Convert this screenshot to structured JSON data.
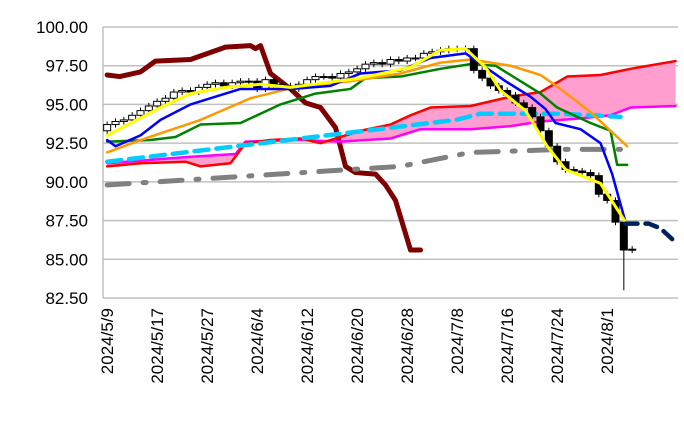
{
  "chart_data": {
    "type": "line",
    "title": "",
    "xlabel": "",
    "ylabel": "",
    "ylim": [
      82.5,
      100
    ],
    "yticks": [
      "100.00",
      "97.50",
      "95.00",
      "92.50",
      "90.00",
      "87.50",
      "85.00",
      "82.50"
    ],
    "ytick_values": [
      100,
      97.5,
      95,
      92.5,
      90,
      87.5,
      85,
      82.5
    ],
    "xlim_index": [
      -0.5,
      68.5
    ],
    "xtick_labels": [
      "2024/5/9",
      "2024/5/17",
      "2024/5/27",
      "2024/6/4",
      "2024/6/12",
      "2024/6/20",
      "2024/6/28",
      "2024/7/8",
      "2024/7/16",
      "2024/7/24",
      "2024/8/1"
    ],
    "xtick_index": [
      0,
      6,
      12,
      18,
      24,
      30,
      36,
      42,
      48,
      54,
      60
    ],
    "grid": "horizontal",
    "colors": {
      "up": "#ffffff",
      "down": "#000000",
      "cloud": "#ff99cc",
      "grid": "#c0c0c0"
    },
    "candles_close": [
      93.7,
      93.9,
      94.0,
      94.3,
      94.6,
      94.9,
      95.2,
      95.4,
      95.8,
      95.9,
      95.8,
      96.1,
      96.3,
      96.4,
      96.2,
      96.4,
      96.5,
      96.5,
      96.0,
      96.6,
      96.3,
      96.2,
      96.0,
      96.3,
      96.6,
      96.8,
      96.8,
      96.7,
      97.0,
      97.1,
      97.3,
      97.6,
      97.7,
      97.6,
      97.9,
      97.8,
      98.0,
      98.0,
      98.3,
      98.4,
      98.5,
      98.6,
      98.6,
      98.6,
      97.2,
      96.7,
      96.2,
      95.9,
      95.6,
      95.1,
      94.8,
      94.2,
      93.3,
      92.3,
      91.3,
      90.8,
      90.7,
      90.6,
      90.4,
      89.2,
      88.8,
      87.4,
      85.6,
      85.65
    ],
    "candles_first_open": 93.3,
    "candles_low_override": {
      "62": 83.0
    },
    "series": [
      {
        "name": "lagging-span",
        "color": "#7f0000",
        "width": 5,
        "dash": "",
        "points": [
          [
            0,
            96.9
          ],
          [
            1.5,
            96.8
          ],
          [
            4,
            97.1
          ],
          [
            5.8,
            97.8
          ],
          [
            10,
            97.9
          ],
          [
            14.2,
            98.7
          ],
          [
            17.2,
            98.8
          ],
          [
            17.8,
            98.6
          ],
          [
            18.4,
            98.8
          ],
          [
            19.6,
            97.0
          ],
          [
            22,
            96.0
          ],
          [
            23.8,
            95.1
          ],
          [
            25.6,
            94.8
          ],
          [
            27.4,
            93.5
          ],
          [
            28.6,
            91.0
          ],
          [
            29.8,
            90.6
          ],
          [
            32.2,
            90.5
          ],
          [
            33.4,
            89.8
          ],
          [
            34.6,
            88.8
          ],
          [
            36.4,
            85.6
          ],
          [
            37.6,
            85.6
          ]
        ]
      },
      {
        "name": "senkou-b",
        "color": "#ff00ff",
        "width": 2.5,
        "dash": "",
        "points": [
          [
            0,
            91.2
          ],
          [
            9.4,
            91.6
          ],
          [
            15.4,
            91.8
          ],
          [
            16.6,
            92.6
          ],
          [
            23.2,
            92.7
          ],
          [
            28,
            92.6
          ],
          [
            34,
            92.8
          ],
          [
            37.6,
            93.4
          ],
          [
            43.6,
            93.4
          ],
          [
            48.4,
            93.6
          ],
          [
            52,
            93.9
          ],
          [
            56.8,
            94.1
          ],
          [
            60.4,
            94.3
          ],
          [
            62.8,
            94.8
          ],
          [
            68.2,
            94.9
          ]
        ]
      },
      {
        "name": "senkou-a",
        "color": "#ff0000",
        "width": 2.5,
        "dash": "",
        "points": [
          [
            0,
            91.0
          ],
          [
            4,
            91.2
          ],
          [
            9.4,
            91.3
          ],
          [
            11.2,
            91.0
          ],
          [
            14.8,
            91.2
          ],
          [
            16.6,
            92.5
          ],
          [
            19.6,
            92.7
          ],
          [
            23.2,
            92.8
          ],
          [
            25.6,
            92.5
          ],
          [
            28,
            92.9
          ],
          [
            30.4,
            93.3
          ],
          [
            34,
            93.7
          ],
          [
            36.4,
            94.3
          ],
          [
            38.8,
            94.8
          ],
          [
            43.6,
            94.9
          ],
          [
            48.4,
            95.5
          ],
          [
            52,
            95.8
          ],
          [
            55.2,
            96.8
          ],
          [
            59.2,
            96.9
          ],
          [
            62.8,
            97.3
          ],
          [
            68.2,
            97.8
          ]
        ]
      },
      {
        "name": "moving-average-75",
        "color": "#808080",
        "width": 5,
        "dash": "22 14 3 14",
        "points": [
          [
            0,
            89.8
          ],
          [
            35.2,
            91.0
          ],
          [
            43.6,
            91.9
          ],
          [
            49.6,
            92.0
          ],
          [
            54.4,
            92.1
          ],
          [
            61.6,
            92.1
          ]
        ]
      },
      {
        "name": "moving-average-25",
        "color": "#00ccff",
        "width": 4.5,
        "dash": "14 8",
        "points": [
          [
            0,
            91.3
          ],
          [
            41.8,
            94.0
          ],
          [
            44.8,
            94.4
          ],
          [
            54.4,
            94.4
          ],
          [
            61.6,
            94.2
          ]
        ]
      },
      {
        "name": "base-line",
        "color": "#008000",
        "width": 2.5,
        "dash": "",
        "points": [
          [
            0,
            92.6
          ],
          [
            5.2,
            92.7
          ],
          [
            8.2,
            92.9
          ],
          [
            11.2,
            93.7
          ],
          [
            16,
            93.8
          ],
          [
            20.8,
            95.0
          ],
          [
            25,
            95.7
          ],
          [
            29.2,
            96.0
          ],
          [
            31,
            96.7
          ],
          [
            35.2,
            96.8
          ],
          [
            40,
            97.3
          ],
          [
            43.6,
            97.6
          ],
          [
            46.6,
            97.5
          ],
          [
            52,
            95.7
          ],
          [
            54,
            94.8
          ],
          [
            58,
            93.8
          ],
          [
            60.4,
            93.3
          ],
          [
            61.2,
            91.1
          ],
          [
            62.4,
            91.1
          ]
        ]
      },
      {
        "name": "moving-average-orange",
        "color": "#ff9900",
        "width": 2.5,
        "dash": "",
        "points": [
          [
            0,
            91.9
          ],
          [
            4,
            92.7
          ],
          [
            11.2,
            94.0
          ],
          [
            17.2,
            95.4
          ],
          [
            23.2,
            96.2
          ],
          [
            29.2,
            96.5
          ],
          [
            35.2,
            97.0
          ],
          [
            40,
            97.7
          ],
          [
            43.6,
            97.9
          ],
          [
            48.4,
            97.5
          ],
          [
            52,
            96.9
          ],
          [
            54.4,
            96.0
          ],
          [
            58,
            94.5
          ],
          [
            60.4,
            93.3
          ],
          [
            62.4,
            92.3
          ]
        ]
      },
      {
        "name": "conversion-line",
        "color": "#0000ff",
        "width": 2.5,
        "dash": "",
        "points": [
          [
            0,
            92.7
          ],
          [
            1,
            92.3
          ],
          [
            4,
            93.0
          ],
          [
            6.4,
            94.0
          ],
          [
            10,
            95.0
          ],
          [
            14.2,
            95.7
          ],
          [
            16,
            96.0
          ],
          [
            22,
            96.0
          ],
          [
            26.8,
            96.2
          ],
          [
            30.4,
            97.0
          ],
          [
            35.2,
            97.2
          ],
          [
            38.8,
            98.0
          ],
          [
            43,
            98.3
          ],
          [
            45.4,
            97.4
          ],
          [
            47.8,
            96.5
          ],
          [
            50.8,
            95.5
          ],
          [
            52.6,
            94.7
          ],
          [
            53.8,
            93.8
          ],
          [
            56.8,
            93.4
          ],
          [
            59.2,
            92.5
          ],
          [
            60.6,
            90.5
          ],
          [
            62.2,
            87.4
          ]
        ]
      },
      {
        "name": "moving-average-5",
        "color": "#ffff00",
        "width": 3,
        "dash": "",
        "points": [
          [
            0,
            93.0
          ],
          [
            6.4,
            94.8
          ],
          [
            10,
            95.7
          ],
          [
            14.2,
            96.1
          ],
          [
            18.4,
            96.3
          ],
          [
            22,
            96.1
          ],
          [
            30.4,
            96.7
          ],
          [
            36.4,
            97.4
          ],
          [
            40,
            98.5
          ],
          [
            43,
            98.6
          ],
          [
            45.4,
            97.4
          ],
          [
            47.2,
            95.9
          ],
          [
            50.2,
            94.6
          ],
          [
            52.8,
            92.3
          ],
          [
            55,
            90.8
          ],
          [
            59.2,
            89.9
          ],
          [
            62.2,
            87.4
          ]
        ]
      },
      {
        "name": "forecast-line",
        "color": "#002060",
        "width": 4.5,
        "dash": "12 8",
        "points": [
          [
            62.2,
            87.3
          ],
          [
            65,
            87.3
          ],
          [
            66.4,
            87.0
          ],
          [
            67.8,
            86.3
          ]
        ]
      }
    ]
  }
}
